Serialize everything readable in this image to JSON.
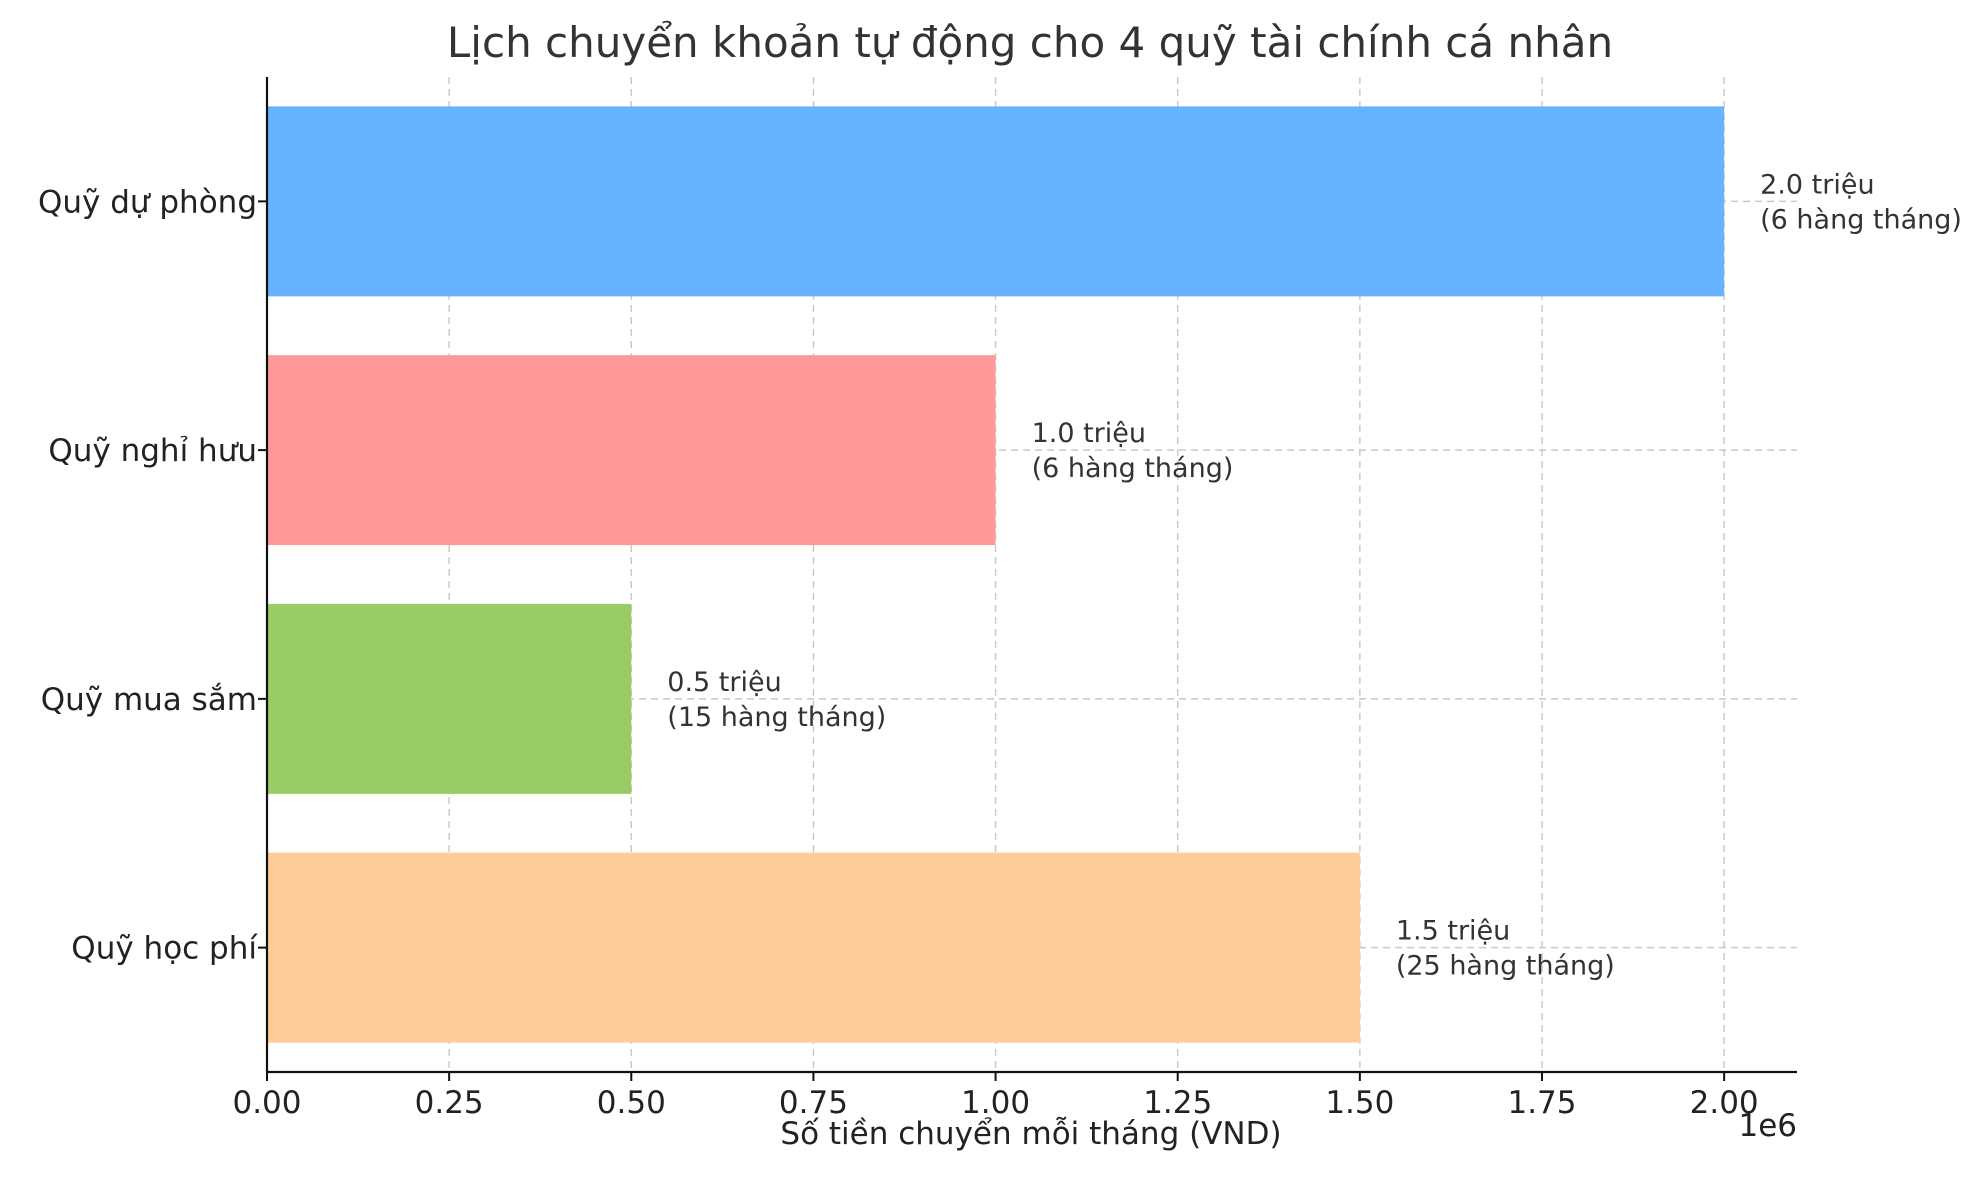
{
  "chart_data": {
    "type": "bar",
    "orientation": "horizontal",
    "title": "Lịch chuyển khoản tự động cho 4 quỹ tài chính cá nhân",
    "xlabel": "Số tiền chuyển mỗi tháng (VND)",
    "ylabel": "",
    "x_offset_text": "1e6",
    "xlim": [
      0,
      2100000
    ],
    "x_ticks": [
      0,
      250000,
      500000,
      750000,
      1000000,
      1250000,
      1500000,
      1750000,
      2000000
    ],
    "x_tick_labels": [
      "0.00",
      "0.25",
      "0.50",
      "0.75",
      "1.00",
      "1.25",
      "1.50",
      "1.75",
      "2.00"
    ],
    "grid": true,
    "categories": [
      "Quỹ dự phòng",
      "Quỹ nghỉ hưu",
      "Quỹ mua sắm",
      "Quỹ học phí"
    ],
    "values": [
      2000000,
      1000000,
      500000,
      1500000
    ],
    "colors": [
      "#66b3ff",
      "#ff9999",
      "#99cc66",
      "#ffcc99"
    ],
    "data_labels": [
      [
        "2.0 triệu",
        "(6 hàng tháng)"
      ],
      [
        "1.0 triệu",
        "(6 hàng tháng)"
      ],
      [
        "0.5 triệu",
        "(15 hàng tháng)"
      ],
      [
        "1.5 triệu",
        "(25 hàng tháng)"
      ]
    ]
  }
}
